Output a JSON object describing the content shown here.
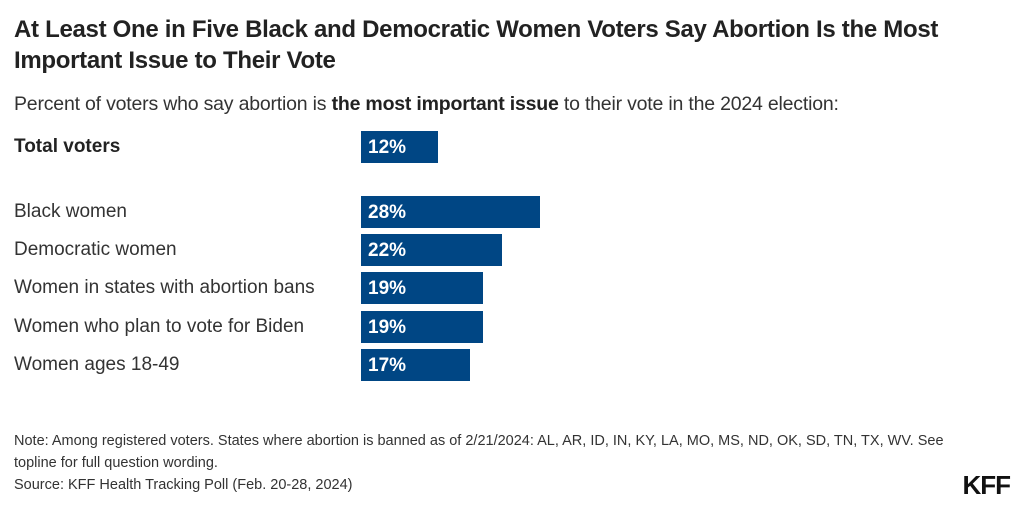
{
  "title": "At Least One in Five Black and Democratic Women Voters Say Abortion Is the Most Important Issue to Their Vote",
  "subtitle": {
    "pre": "Percent of voters who say abortion is ",
    "bold": "the most important issue",
    "post": " to their vote in the 2024 election:"
  },
  "chart_data": {
    "type": "bar",
    "orientation": "horizontal",
    "categories": [
      "Total voters",
      "Black women",
      "Democratic women",
      "Women in states with abortion bans",
      "Women who plan to vote for Biden",
      "Women ages 18-49"
    ],
    "values": [
      12,
      28,
      22,
      19,
      19,
      17
    ],
    "labels": [
      "12%",
      "28%",
      "22%",
      "19%",
      "19%",
      "17%"
    ],
    "unit": "%",
    "color": "#004684"
  },
  "note": "Note: Among registered voters. States where abortion is banned as of 2/21/2024: AL, AR, ID, IN, KY, LA, MO, MS, ND, OK, SD, TN, TX, WV. See topline for full question wording.",
  "source": "Source: KFF Health Tracking Poll (Feb. 20-28, 2024)",
  "logo": "KFF"
}
